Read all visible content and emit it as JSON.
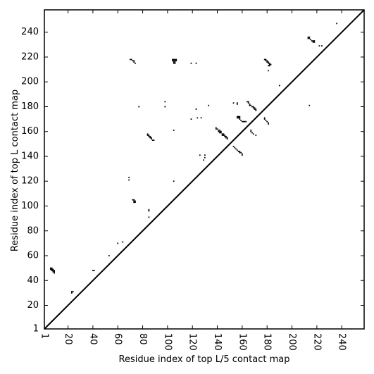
{
  "chart_data": {
    "type": "heatmap",
    "title": "",
    "xlabel": "Residue index of top L/5 contact map",
    "ylabel": "Residue index of top L contact map",
    "xlim": [
      1,
      258
    ],
    "ylim": [
      1,
      258
    ],
    "x_ticks": [
      1,
      20,
      40,
      60,
      80,
      100,
      120,
      140,
      160,
      180,
      200,
      220,
      240
    ],
    "y_ticks": [
      1,
      20,
      40,
      60,
      80,
      100,
      120,
      140,
      160,
      180,
      200,
      220,
      240
    ],
    "x_tick_rotation": -90,
    "grid": false,
    "diagonal": true,
    "colors": {
      "mark": "#000000",
      "background": "#ffffff",
      "frame": "#000000"
    },
    "points": [
      [
        6,
        50
      ],
      [
        7,
        50
      ],
      [
        6,
        49
      ],
      [
        7,
        49
      ],
      [
        8,
        49
      ],
      [
        7,
        48
      ],
      [
        8,
        48
      ],
      [
        9,
        48
      ],
      [
        8,
        47
      ],
      [
        9,
        47
      ],
      [
        9,
        46
      ],
      [
        23,
        31
      ],
      [
        24,
        31
      ],
      [
        23,
        30
      ],
      [
        40,
        48
      ],
      [
        41,
        48
      ],
      [
        53,
        60
      ],
      [
        60,
        70
      ],
      [
        64,
        71
      ],
      [
        69,
        123
      ],
      [
        69,
        121
      ],
      [
        70,
        218
      ],
      [
        71,
        218
      ],
      [
        72,
        217
      ],
      [
        73,
        217
      ],
      [
        73,
        216
      ],
      [
        74,
        215
      ],
      [
        72,
        105
      ],
      [
        73,
        105
      ],
      [
        74,
        104
      ],
      [
        73,
        104
      ],
      [
        74,
        103
      ],
      [
        73,
        103
      ],
      [
        77,
        180
      ],
      [
        84,
        158
      ],
      [
        84,
        157
      ],
      [
        85,
        157
      ],
      [
        85,
        156
      ],
      [
        86,
        156
      ],
      [
        86,
        155
      ],
      [
        87,
        155
      ],
      [
        87,
        154
      ],
      [
        88,
        153
      ],
      [
        89,
        153
      ],
      [
        85,
        97
      ],
      [
        85,
        96
      ],
      [
        85,
        91
      ],
      [
        98,
        184
      ],
      [
        98,
        180
      ],
      [
        104,
        218
      ],
      [
        105,
        218
      ],
      [
        106,
        218
      ],
      [
        107,
        218
      ],
      [
        104,
        217
      ],
      [
        105,
        217
      ],
      [
        106,
        217
      ],
      [
        107,
        217
      ],
      [
        105,
        216
      ],
      [
        106,
        216
      ],
      [
        105,
        215
      ],
      [
        106,
        215
      ],
      [
        105,
        161
      ],
      [
        105,
        120
      ],
      [
        119,
        215
      ],
      [
        123,
        215
      ],
      [
        119,
        170
      ],
      [
        123,
        178
      ],
      [
        124,
        171
      ],
      [
        127,
        171
      ],
      [
        126,
        141
      ],
      [
        130,
        141
      ],
      [
        130,
        139
      ],
      [
        129,
        137
      ],
      [
        133,
        181
      ],
      [
        139,
        163
      ],
      [
        139,
        162
      ],
      [
        140,
        162
      ],
      [
        141,
        161
      ],
      [
        142,
        161
      ],
      [
        141,
        160
      ],
      [
        142,
        160
      ],
      [
        143,
        160
      ],
      [
        142,
        159
      ],
      [
        143,
        159
      ],
      [
        144,
        158
      ],
      [
        145,
        158
      ],
      [
        144,
        157
      ],
      [
        145,
        157
      ],
      [
        146,
        157
      ],
      [
        146,
        156
      ],
      [
        147,
        156
      ],
      [
        147,
        155
      ],
      [
        148,
        155
      ],
      [
        148,
        154
      ],
      [
        153,
        183
      ],
      [
        156,
        183
      ],
      [
        156,
        182
      ],
      [
        153,
        148
      ],
      [
        154,
        147
      ],
      [
        155,
        146
      ],
      [
        156,
        145
      ],
      [
        157,
        144
      ],
      [
        158,
        144
      ],
      [
        158,
        143
      ],
      [
        159,
        143
      ],
      [
        160,
        142
      ],
      [
        160,
        141
      ],
      [
        156,
        172
      ],
      [
        157,
        172
      ],
      [
        158,
        172
      ],
      [
        156,
        171
      ],
      [
        157,
        171
      ],
      [
        158,
        171
      ],
      [
        158,
        170
      ],
      [
        159,
        169
      ],
      [
        160,
        168
      ],
      [
        161,
        168
      ],
      [
        162,
        168
      ],
      [
        163,
        168
      ],
      [
        164,
        184
      ],
      [
        165,
        184
      ],
      [
        165,
        183
      ],
      [
        166,
        182
      ],
      [
        166,
        181
      ],
      [
        167,
        181
      ],
      [
        168,
        180
      ],
      [
        169,
        180
      ],
      [
        169,
        179
      ],
      [
        170,
        179
      ],
      [
        170,
        178
      ],
      [
        171,
        178
      ],
      [
        171,
        177
      ],
      [
        167,
        161
      ],
      [
        167,
        160
      ],
      [
        168,
        159
      ],
      [
        169,
        158
      ],
      [
        171,
        157
      ],
      [
        178,
        171
      ],
      [
        178,
        170
      ],
      [
        179,
        169
      ],
      [
        180,
        168
      ],
      [
        181,
        167
      ],
      [
        181,
        166
      ],
      [
        178,
        218
      ],
      [
        179,
        218
      ],
      [
        179,
        217
      ],
      [
        180,
        217
      ],
      [
        180,
        216
      ],
      [
        181,
        216
      ],
      [
        181,
        215
      ],
      [
        182,
        215
      ],
      [
        182,
        214
      ],
      [
        183,
        214
      ],
      [
        181,
        213
      ],
      [
        182,
        213
      ],
      [
        181,
        209
      ],
      [
        190,
        197
      ],
      [
        213,
        236
      ],
      [
        214,
        236
      ],
      [
        213,
        235
      ],
      [
        214,
        235
      ],
      [
        215,
        234
      ],
      [
        216,
        233
      ],
      [
        217,
        233
      ],
      [
        218,
        233
      ],
      [
        217,
        232
      ],
      [
        218,
        232
      ],
      [
        222,
        229
      ],
      [
        224,
        229
      ],
      [
        214,
        181
      ],
      [
        236,
        247
      ]
    ]
  }
}
